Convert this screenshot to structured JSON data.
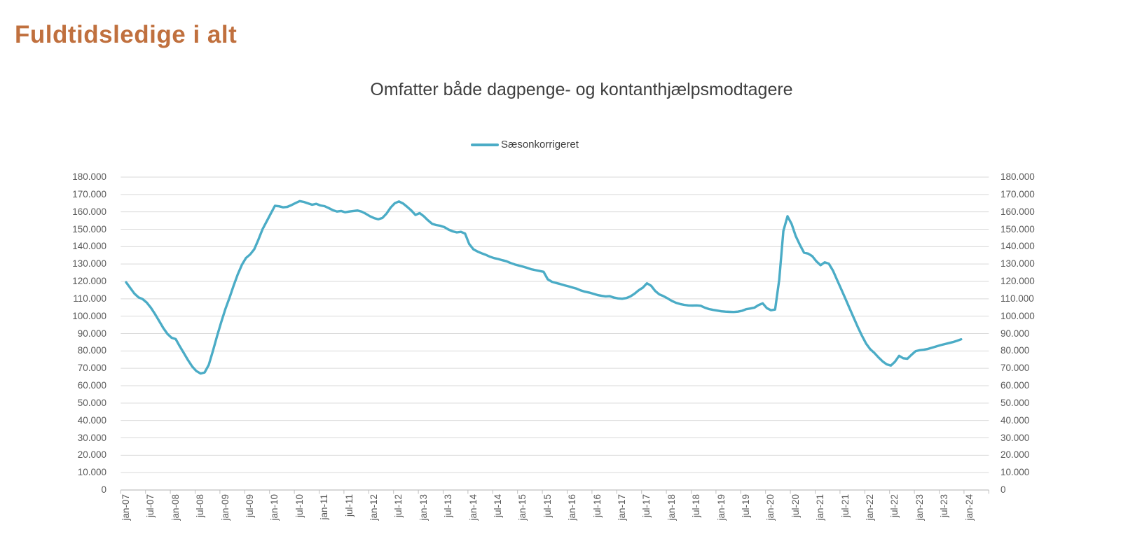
{
  "page": {
    "title": "Fuldtidsledige i alt",
    "title_color": "#C0703E"
  },
  "chart": {
    "subtitle": "Omfatter både dagpenge- og kontanthjælpsmodtagere",
    "legend": {
      "label": "Sæsonkorrigeret",
      "swatch_color": "#4BACC6"
    },
    "colors": {
      "line": "#4BACC6",
      "gridline": "#D9D9D9",
      "axis_line": "#BFBFBF",
      "axis_label": "#595959"
    }
  },
  "chart_data": {
    "type": "line",
    "title": "Fuldtidsledige i alt",
    "subtitle": "Omfatter både dagpenge- og kontanthjælpsmodtagere",
    "grid": true,
    "legend_position": "top-center",
    "x_axis": {
      "label_interval": "6 months",
      "first_month": "jan-07",
      "last_label": "jan-24",
      "tick_labels": [
        "jan-07",
        "jul-07",
        "jan-08",
        "jul-08",
        "jan-09",
        "jul-09",
        "jan-10",
        "jul-10",
        "jan-11",
        "jul-11",
        "jan-12",
        "jul-12",
        "jan-13",
        "jul-13",
        "jan-14",
        "jul-14",
        "jan-15",
        "jul-15",
        "jan-16",
        "jul-16",
        "jan-17",
        "jul-17",
        "jan-18",
        "jul-18",
        "jan-19",
        "jul-19",
        "jan-20",
        "jul-20",
        "jan-21",
        "jul-21",
        "jan-22",
        "jul-22",
        "jan-23",
        "jul-23",
        "jan-24"
      ]
    },
    "y_axis": {
      "min": 0,
      "max": 180000,
      "step": 10000,
      "tick_labels_top_to_bottom": [
        "180.000",
        "170.000",
        "160.000",
        "150.000",
        "140.000",
        "130.000",
        "120.000",
        "110.000",
        "100.000",
        "90.000",
        "80.000",
        "70.000",
        "60.000",
        "50.000",
        "40.000",
        "30.000",
        "20.000",
        "10.000",
        "0"
      ],
      "mirrored_right_axis": true
    },
    "series": [
      {
        "name": "Sæsonkorrigeret",
        "color": "#4BACC6",
        "frequency": "monthly",
        "start": "jan-07",
        "end": "nov-23",
        "values": [
          119500,
          116200,
          113000,
          110800,
          109800,
          107800,
          104800,
          101200,
          97200,
          93200,
          89800,
          87600,
          86800,
          82600,
          78600,
          74600,
          71000,
          68400,
          67000,
          67600,
          72000,
          80000,
          88500,
          96500,
          104000,
          110500,
          117500,
          124000,
          129500,
          133500,
          135500,
          138500,
          144000,
          150000,
          154500,
          159000,
          163500,
          163200,
          162600,
          162900,
          163900,
          165100,
          166200,
          165700,
          164900,
          164100,
          164600,
          163700,
          163300,
          162200,
          161000,
          160200,
          160500,
          159800,
          160200,
          160500,
          160800,
          160100,
          158900,
          157500,
          156400,
          155700,
          156500,
          159000,
          162500,
          165000,
          166000,
          164800,
          162900,
          160800,
          158200,
          159300,
          157500,
          155200,
          153200,
          152400,
          152000,
          151200,
          149800,
          148800,
          148200,
          148500,
          147500,
          141500,
          138500,
          137200,
          136200,
          135300,
          134200,
          133400,
          132900,
          132200,
          131600,
          130600,
          129800,
          129100,
          128500,
          127800,
          127000,
          126500,
          126000,
          125500,
          121200,
          119800,
          119100,
          118500,
          117800,
          117200,
          116500,
          115800,
          114800,
          114100,
          113600,
          112900,
          112200,
          111700,
          111400,
          111500,
          110700,
          110200,
          110000,
          110400,
          111400,
          112900,
          114900,
          116400,
          118900,
          117500,
          114500,
          112500,
          111500,
          110200,
          108800,
          107700,
          107000,
          106500,
          106200,
          106100,
          106200,
          106000,
          104900,
          104100,
          103600,
          103200,
          102800,
          102600,
          102500,
          102400,
          102600,
          103100,
          104000,
          104400,
          104900,
          106400,
          107400,
          104600,
          103400,
          103800,
          121000,
          149000,
          157500,
          153000,
          146000,
          141000,
          136500,
          136000,
          134500,
          131500,
          129300,
          131000,
          130200,
          126200,
          120800,
          115500,
          110100,
          104600,
          99200,
          93800,
          88800,
          84300,
          81000,
          78900,
          76300,
          74000,
          72300,
          71600,
          73800,
          77200,
          75800,
          75500,
          77800,
          79900,
          80400,
          80700,
          81200,
          81900,
          82600,
          83300,
          83900,
          84500,
          85100,
          85800,
          86700
        ]
      }
    ]
  }
}
